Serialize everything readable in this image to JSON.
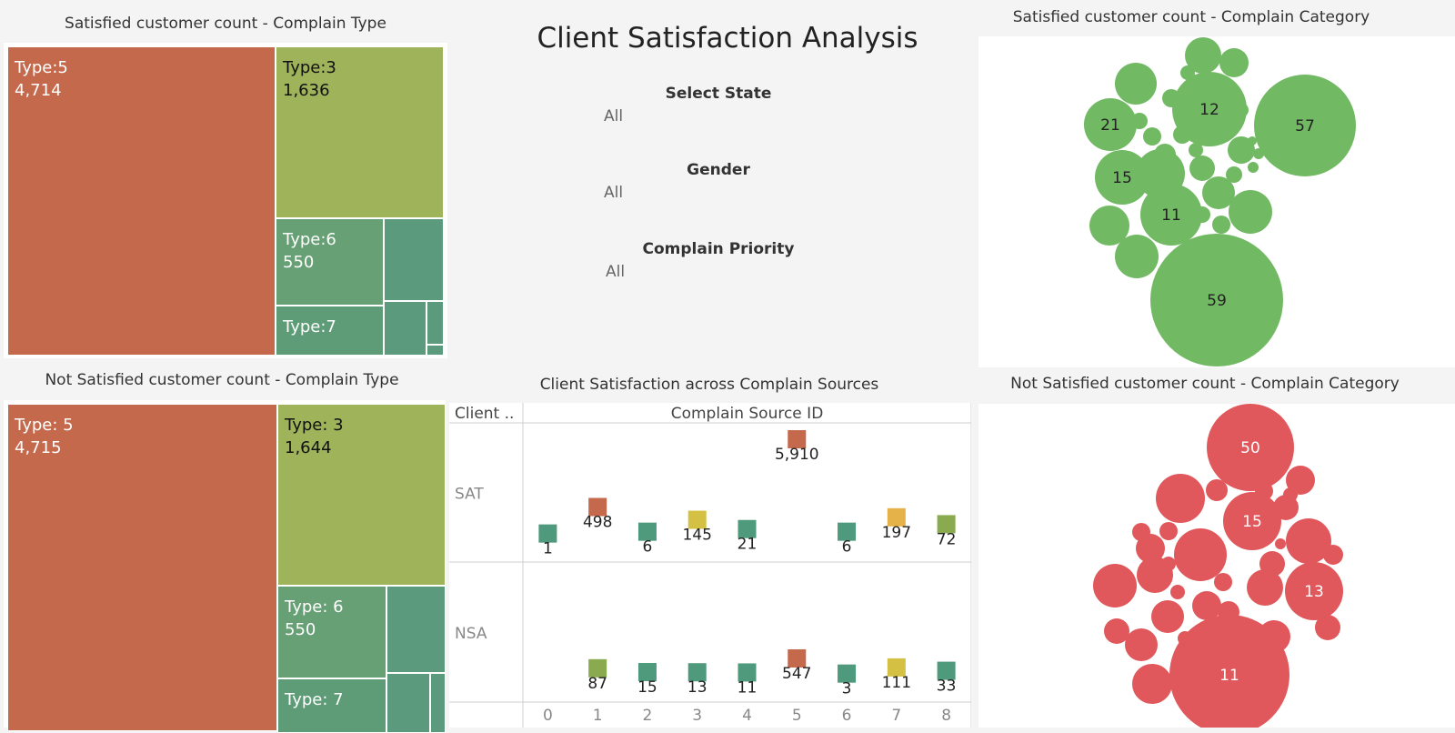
{
  "title": "Client Satisfaction Analysis",
  "filters": [
    {
      "label": "Select State",
      "value": "All"
    },
    {
      "label": "Gender",
      "value": "All"
    },
    {
      "label": "Complain Priority",
      "value": "All"
    }
  ],
  "colors": {
    "type5": "#c4694c",
    "type3": "#9fb35b",
    "type6": "#66a074",
    "teal": "#5b9a7c",
    "sat_bubble": "#71b963",
    "nsat_bubble": "#e0585b",
    "bar_red": "#c4694c",
    "bar_teal": "#4f9a7c",
    "bar_yellow": "#d4c043",
    "bar_orange": "#e5b24a",
    "bar_olive": "#8aaa4f"
  },
  "chart_data": [
    {
      "type": "treemap",
      "title": "Satisfied customer count - Complain Type",
      "items": [
        {
          "name": "Type:5",
          "value": 4714,
          "label": "4,714"
        },
        {
          "name": "Type:3",
          "value": 1636,
          "label": "1,636"
        },
        {
          "name": "Type:6",
          "value": 550,
          "label": "550"
        },
        {
          "name": "Type:7",
          "value": null,
          "label": ""
        }
      ]
    },
    {
      "type": "treemap",
      "title": "Not Satisfied customer count - Complain Type",
      "items": [
        {
          "name": "Type: 5",
          "value": 4715,
          "label": "4,715"
        },
        {
          "name": "Type: 3",
          "value": 1644,
          "label": "1,644"
        },
        {
          "name": "Type: 6",
          "value": 550,
          "label": "550"
        },
        {
          "name": "Type: 7",
          "value": null,
          "label": ""
        }
      ]
    },
    {
      "type": "bubble",
      "title": "Satisfied customer count - Complain Category",
      "labeled_values": [
        59,
        57,
        21,
        15,
        12,
        11
      ]
    },
    {
      "type": "bubble",
      "title": "Not Satisfied customer count - Complain Category",
      "labeled_values": [
        50,
        15,
        13,
        11
      ]
    },
    {
      "type": "scatter",
      "title": "Client Satisfaction across Complain Sources",
      "row_header": "Client ..",
      "column_header": "Complain Source ID",
      "x_ticks": [
        "0",
        "1",
        "2",
        "3",
        "4",
        "5",
        "6",
        "7",
        "8"
      ],
      "rows": [
        {
          "name": "SAT",
          "points": [
            {
              "x": 0,
              "value": 1,
              "label": "1",
              "color": "bar_teal"
            },
            {
              "x": 1,
              "value": 498,
              "label": "498",
              "color": "bar_red"
            },
            {
              "x": 2,
              "value": 6,
              "label": "6",
              "color": "bar_teal"
            },
            {
              "x": 3,
              "value": 145,
              "label": "145",
              "color": "bar_yellow"
            },
            {
              "x": 4,
              "value": 21,
              "label": "21",
              "color": "bar_teal"
            },
            {
              "x": 5,
              "value": 5910,
              "label": "5,910",
              "color": "bar_red"
            },
            {
              "x": 6,
              "value": 6,
              "label": "6",
              "color": "bar_teal"
            },
            {
              "x": 7,
              "value": 197,
              "label": "197",
              "color": "bar_orange"
            },
            {
              "x": 8,
              "value": 72,
              "label": "72",
              "color": "bar_olive"
            }
          ]
        },
        {
          "name": "NSA",
          "points": [
            {
              "x": 1,
              "value": 87,
              "label": "87",
              "color": "bar_olive"
            },
            {
              "x": 2,
              "value": 15,
              "label": "15",
              "color": "bar_teal"
            },
            {
              "x": 3,
              "value": 13,
              "label": "13",
              "color": "bar_teal"
            },
            {
              "x": 4,
              "value": 11,
              "label": "11",
              "color": "bar_teal"
            },
            {
              "x": 5,
              "value": 547,
              "label": "547",
              "color": "bar_red"
            },
            {
              "x": 6,
              "value": 3,
              "label": "3",
              "color": "bar_teal"
            },
            {
              "x": 7,
              "value": 111,
              "label": "111",
              "color": "bar_yellow"
            },
            {
              "x": 8,
              "value": 33,
              "label": "33",
              "color": "bar_teal"
            }
          ]
        }
      ]
    }
  ]
}
